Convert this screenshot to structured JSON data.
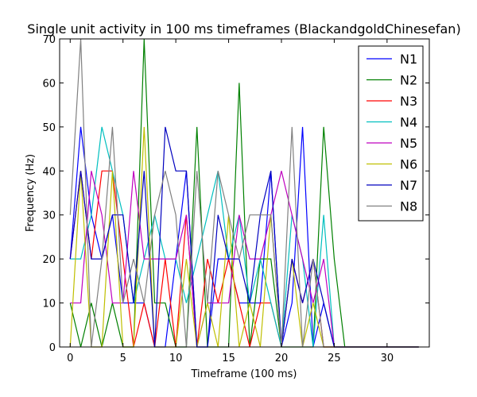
{
  "chart_data": {
    "type": "line",
    "title": "Single unit activity in 100 ms timeframes (BlackandgoldChinesefan)",
    "xlabel": "Timeframe (100 ms)",
    "ylabel": "Frequency (Hz)",
    "xlim": [
      -1,
      34
    ],
    "ylim": [
      0,
      70
    ],
    "xticks": [
      0,
      5,
      10,
      15,
      20,
      25,
      30
    ],
    "yticks": [
      0,
      10,
      20,
      30,
      40,
      50,
      60,
      70
    ],
    "grid": false,
    "legend_position": "top-right",
    "x": [
      0,
      1,
      2,
      3,
      4,
      5,
      6,
      7,
      8,
      9,
      10,
      11,
      12,
      13,
      14,
      15,
      16,
      17,
      18,
      19,
      20,
      21,
      22,
      23,
      24,
      25,
      26,
      27,
      28,
      29,
      30,
      31,
      32,
      33
    ],
    "series": [
      {
        "name": "N1",
        "color": "#0000ff",
        "values": [
          20,
          50,
          30,
          20,
          30,
          10,
          10,
          10,
          0,
          0,
          20,
          40,
          0,
          0,
          20,
          20,
          10,
          10,
          10,
          40,
          0,
          10,
          50,
          0,
          10,
          0,
          0,
          0,
          0,
          0,
          0,
          0,
          0,
          0
        ]
      },
      {
        "name": "N2",
        "color": "#008000",
        "values": [
          10,
          0,
          10,
          0,
          10,
          0,
          0,
          70,
          10,
          10,
          0,
          0,
          50,
          0,
          0,
          0,
          60,
          0,
          20,
          20,
          0,
          0,
          0,
          0,
          50,
          20,
          0,
          0,
          0,
          0,
          0,
          0,
          0,
          0
        ]
      },
      {
        "name": "N3",
        "color": "#ff0000",
        "values": [
          20,
          40,
          20,
          40,
          40,
          20,
          0,
          10,
          0,
          20,
          0,
          30,
          0,
          20,
          10,
          20,
          10,
          0,
          10,
          10,
          0,
          20,
          10,
          20,
          0,
          0,
          0,
          0,
          0,
          0,
          0,
          0,
          0,
          0
        ]
      },
      {
        "name": "N4",
        "color": "#00bfbf",
        "values": [
          20,
          20,
          30,
          50,
          40,
          30,
          10,
          20,
          30,
          20,
          20,
          10,
          20,
          30,
          40,
          20,
          30,
          10,
          20,
          10,
          0,
          30,
          20,
          0,
          30,
          0,
          0,
          0,
          0,
          0,
          0,
          0,
          0,
          0
        ]
      },
      {
        "name": "N5",
        "color": "#bf00bf",
        "values": [
          10,
          10,
          40,
          30,
          10,
          10,
          40,
          20,
          20,
          20,
          20,
          30,
          0,
          10,
          10,
          10,
          30,
          20,
          20,
          30,
          40,
          30,
          20,
          10,
          20,
          0,
          0,
          0,
          0,
          0,
          0,
          0,
          0,
          0
        ]
      },
      {
        "name": "N6",
        "color": "#bfbf00",
        "values": [
          0,
          40,
          0,
          0,
          40,
          0,
          0,
          50,
          0,
          0,
          0,
          20,
          0,
          10,
          0,
          30,
          0,
          10,
          0,
          30,
          0,
          20,
          0,
          10,
          0,
          0,
          0,
          0,
          0,
          0,
          0,
          0,
          0,
          0
        ]
      },
      {
        "name": "N7",
        "color": "#0000bf",
        "values": [
          20,
          40,
          20,
          20,
          30,
          30,
          10,
          40,
          0,
          50,
          40,
          40,
          0,
          0,
          30,
          20,
          20,
          10,
          30,
          40,
          0,
          20,
          10,
          20,
          10,
          0,
          0,
          0,
          0,
          0,
          0,
          0,
          0,
          0
        ]
      },
      {
        "name": "N8",
        "color": "#808080",
        "values": [
          30,
          70,
          0,
          20,
          50,
          10,
          20,
          10,
          30,
          40,
          30,
          0,
          40,
          10,
          40,
          30,
          20,
          30,
          30,
          30,
          0,
          50,
          0,
          20,
          0,
          0,
          0,
          0,
          0,
          0,
          0,
          0,
          0,
          0
        ]
      }
    ]
  }
}
